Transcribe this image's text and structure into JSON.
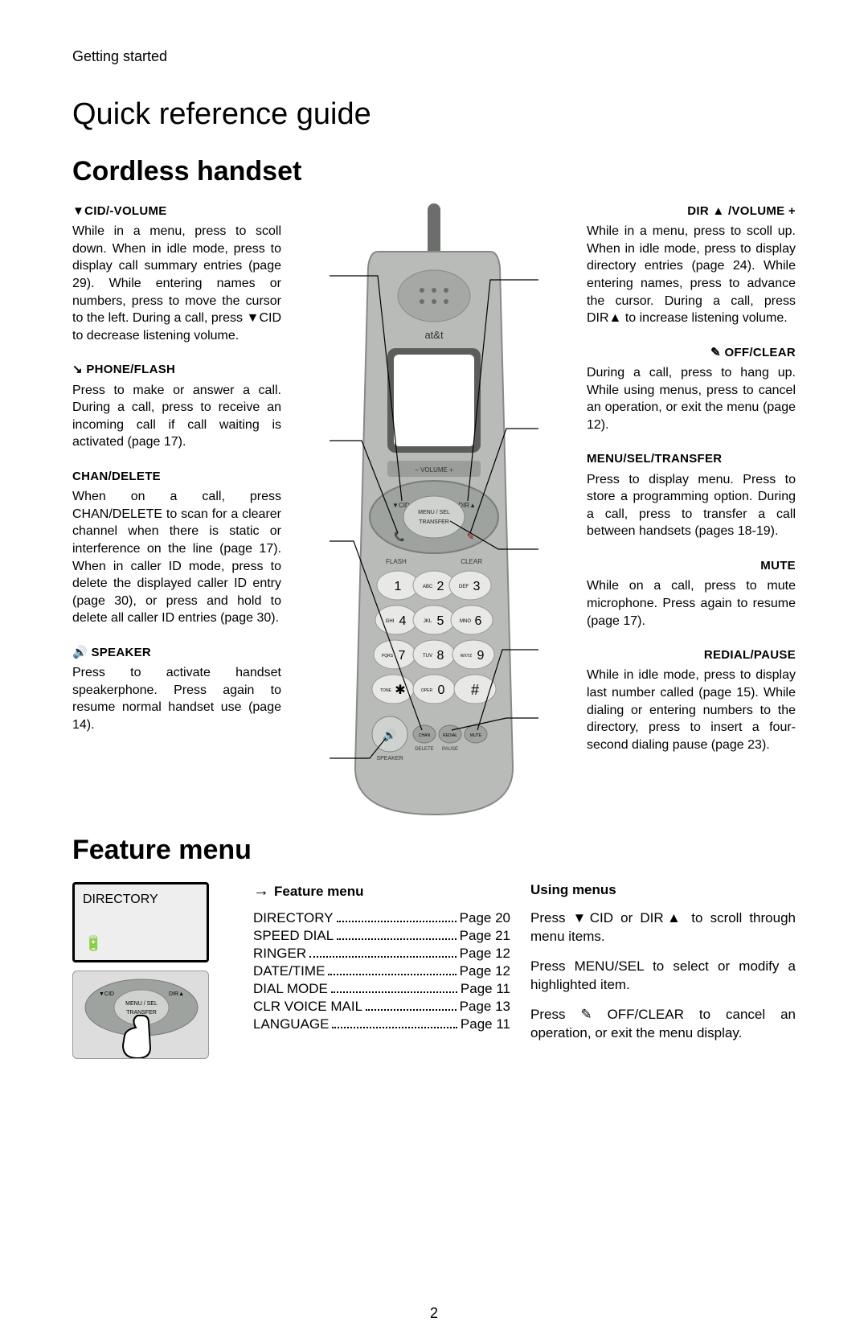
{
  "breadcrumb": "Getting started",
  "page_title": "Quick reference guide",
  "section1_title": "Cordless handset",
  "section2_title": "Feature menu",
  "page_number": "2",
  "left_callouts": [
    {
      "head": "▼CID/-VOLUME",
      "body": "While in a menu, press to scoll down. When in idle mode, press to display call summary entries (page 29). While entering names or numbers, press to move the cursor to the left. During a call, press ▼CID to decrease listening volume."
    },
    {
      "head": "↘ PHONE/FLASH",
      "body": "Press to make or answer a call. During a call, press to receive an incoming call if call waiting is activated (page 17)."
    },
    {
      "head": "CHAN/DELETE",
      "body": "When on a call, press CHAN/DELETE to scan for a clearer channel when there is static or interference on the line (page 17). When in caller ID mode, press to delete the displayed caller ID entry (page 30), or press and hold to delete all caller ID entries (page 30)."
    },
    {
      "head": "🔊 SPEAKER",
      "body": "Press to activate handset speakerphone. Press again to resume normal handset use (page 14)."
    }
  ],
  "right_callouts": [
    {
      "head": "DIR ▲ /VOLUME +",
      "body": "While in a menu, press to scoll up. When in idle mode, press to display directory entries (page 24). While entering names, press to advance the cursor. During a call, press DIR▲ to increase listening volume."
    },
    {
      "head": "✎ OFF/CLEAR",
      "body": "During a call, press to hang up. While using menus, press to cancel an operation, or exit the menu (page 12)."
    },
    {
      "head": "MENU/SEL/TRANSFER",
      "body": "Press to display menu. Press to store a programming option. During a call, press to transfer a call between handsets (pages 18-19)."
    },
    {
      "head": "MUTE",
      "body": "While on a call, press to mute microphone. Press again to resume (page 17)."
    },
    {
      "head": "REDIAL/PAUSE",
      "body": "While in idle mode, press to display last number called (page 15). While dialing or entering numbers to the directory, press to insert a four-second dialing pause (page 23)."
    }
  ],
  "phone": {
    "brand": "at&t",
    "volume_label": "VOLUME",
    "cid_label": "▼CID",
    "dir_label": "DIR▲",
    "menu_sel": "MENU / SEL",
    "transfer": "TRANSFER",
    "flash": "FLASH",
    "clear": "CLEAR",
    "speaker": "SPEAKER",
    "delete": "DELETE",
    "pause": "PAUSE",
    "keys": [
      {
        "n": "1",
        "l": ""
      },
      {
        "n": "2",
        "l": "ABC"
      },
      {
        "n": "3",
        "l": "DEF"
      },
      {
        "n": "4",
        "l": "GHI"
      },
      {
        "n": "5",
        "l": "JKL"
      },
      {
        "n": "6",
        "l": "MNO"
      },
      {
        "n": "7",
        "l": "PQRS"
      },
      {
        "n": "8",
        "l": "TUV"
      },
      {
        "n": "9",
        "l": "WXYZ"
      },
      {
        "n": "✱",
        "l": "TONE"
      },
      {
        "n": "0",
        "l": "OPER"
      },
      {
        "n": "#",
        "l": ""
      }
    ],
    "small_btns": [
      "CHAN",
      "REDIAL",
      "MUTE"
    ],
    "body_color": "#b8bbb8",
    "accent_color": "#8f9390",
    "screen_color": "#ffffff",
    "key_color": "#e8e9e6"
  },
  "mini_screen": {
    "title": "DIRECTORY",
    "icon": "🔋"
  },
  "feature_menu_head": "Feature menu",
  "feature_menu": [
    {
      "label": "DIRECTORY",
      "page": "Page 20"
    },
    {
      "label": "SPEED DIAL",
      "page": "Page 21"
    },
    {
      "label": "RINGER",
      "page": "Page 12"
    },
    {
      "label": "DATE/TIME",
      "page": "Page 12"
    },
    {
      "label": "DIAL MODE",
      "page": "Page 11"
    },
    {
      "label": "CLR VOICE MAIL",
      "page": "Page 13"
    },
    {
      "label": "LANGUAGE",
      "page": "Page 11"
    }
  ],
  "using_menus_head": "Using menus",
  "using_menus": [
    "Press ▼CID or DIR▲ to scroll through menu items.",
    "Press MENU/SEL to select or modify a highlighted item.",
    "Press ✎ OFF/CLEAR to cancel an operation, or exit the menu display."
  ]
}
